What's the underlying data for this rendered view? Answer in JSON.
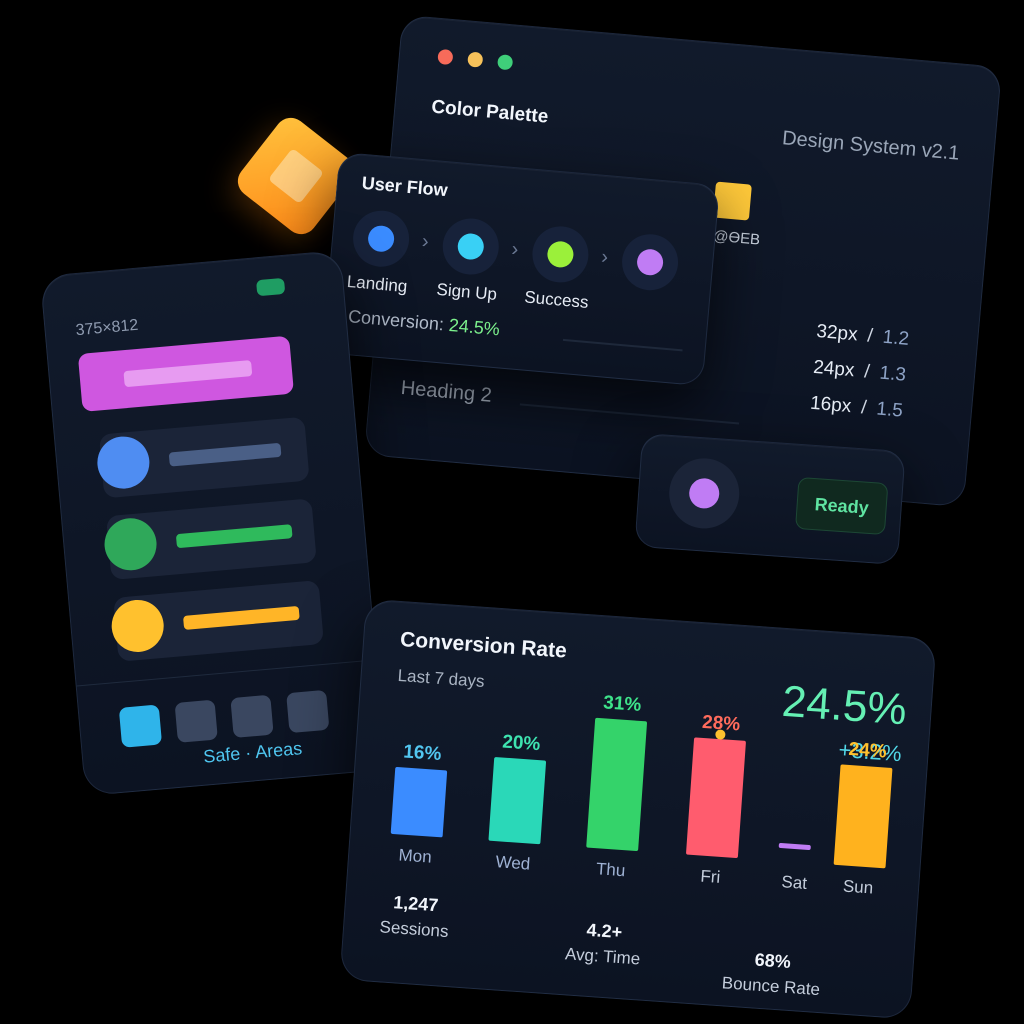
{
  "design_system": {
    "title": "Color Palette",
    "version": "Design System v2.1",
    "window_dots": [
      "#f76b5a",
      "#f7c25a",
      "#3fcf7a"
    ],
    "swatches": [
      "#ffc93a"
    ],
    "hex_partial": "@ƟEB",
    "sizes": [
      {
        "size": "32px",
        "slash": "/",
        "ratio": "1.2"
      },
      {
        "size": "24px",
        "slash": "/",
        "ratio": "1.3"
      },
      {
        "size": "16px",
        "slash": "/",
        "ratio": "1.5"
      }
    ],
    "heading_big": "Heading 2",
    "heading_small": "Heading 2"
  },
  "user_flow": {
    "title": "User Flow",
    "steps": [
      {
        "label": "Landing",
        "color": "#3b8cff"
      },
      {
        "label": "Sign Up",
        "color": "#39d0f5"
      },
      {
        "label": "Success",
        "color": "#9bf03a"
      },
      {
        "label": "",
        "color": "#c07cf4"
      }
    ],
    "chevron": "›",
    "conversion_label": "Conversion:",
    "conversion_value": "24.5%"
  },
  "ready": {
    "label": "Ready",
    "dot_color": "#c07cf4"
  },
  "phone": {
    "dimensions": "375×812",
    "status_color": "#1f9d63",
    "rows": [
      {
        "circle": "#4f8df2",
        "line": "#4a5f86"
      },
      {
        "circle": "#2fa85a",
        "line": "#2fba5c"
      },
      {
        "circle": "#ffc12e",
        "line": "#ffb527"
      }
    ],
    "tiles": [
      "#2fb4ea",
      "#3a4760",
      "#3a4760",
      "#3a4760"
    ],
    "safe_label": "Safe · Areas"
  },
  "conversion": {
    "title": "Conversion Rate",
    "subtitle": "Last 7 days",
    "big_value": "24.5%",
    "delta": "+3.2%",
    "marker_color": "#ffc12e",
    "stats": [
      {
        "value": "1,247",
        "label": "Sessions"
      },
      {
        "value": "4.2+",
        "label": "Avg: Time"
      },
      {
        "value": "68%",
        "label": "Bounce Rate"
      }
    ]
  },
  "chart_data": {
    "type": "bar",
    "categories": [
      "Mon",
      "Wed",
      "Thu",
      "Fri",
      "Sat",
      "Sun"
    ],
    "values": [
      16,
      20,
      31,
      28,
      0,
      24
    ],
    "data_labels": [
      "16%",
      "20%",
      "31%",
      "28%",
      "",
      "24%"
    ],
    "colors": [
      "#3b8cff",
      "#2ad8b8",
      "#34d36a",
      "#ff5c6e",
      "#c07cf4",
      "#ffb21e"
    ],
    "label_colors": [
      "#52c6f0",
      "#3ee3b0",
      "#3ee38a",
      "#ff6b5c",
      "",
      "#ffc12e"
    ],
    "ylim": [
      0,
      31
    ],
    "grid": false,
    "legend": "none"
  }
}
